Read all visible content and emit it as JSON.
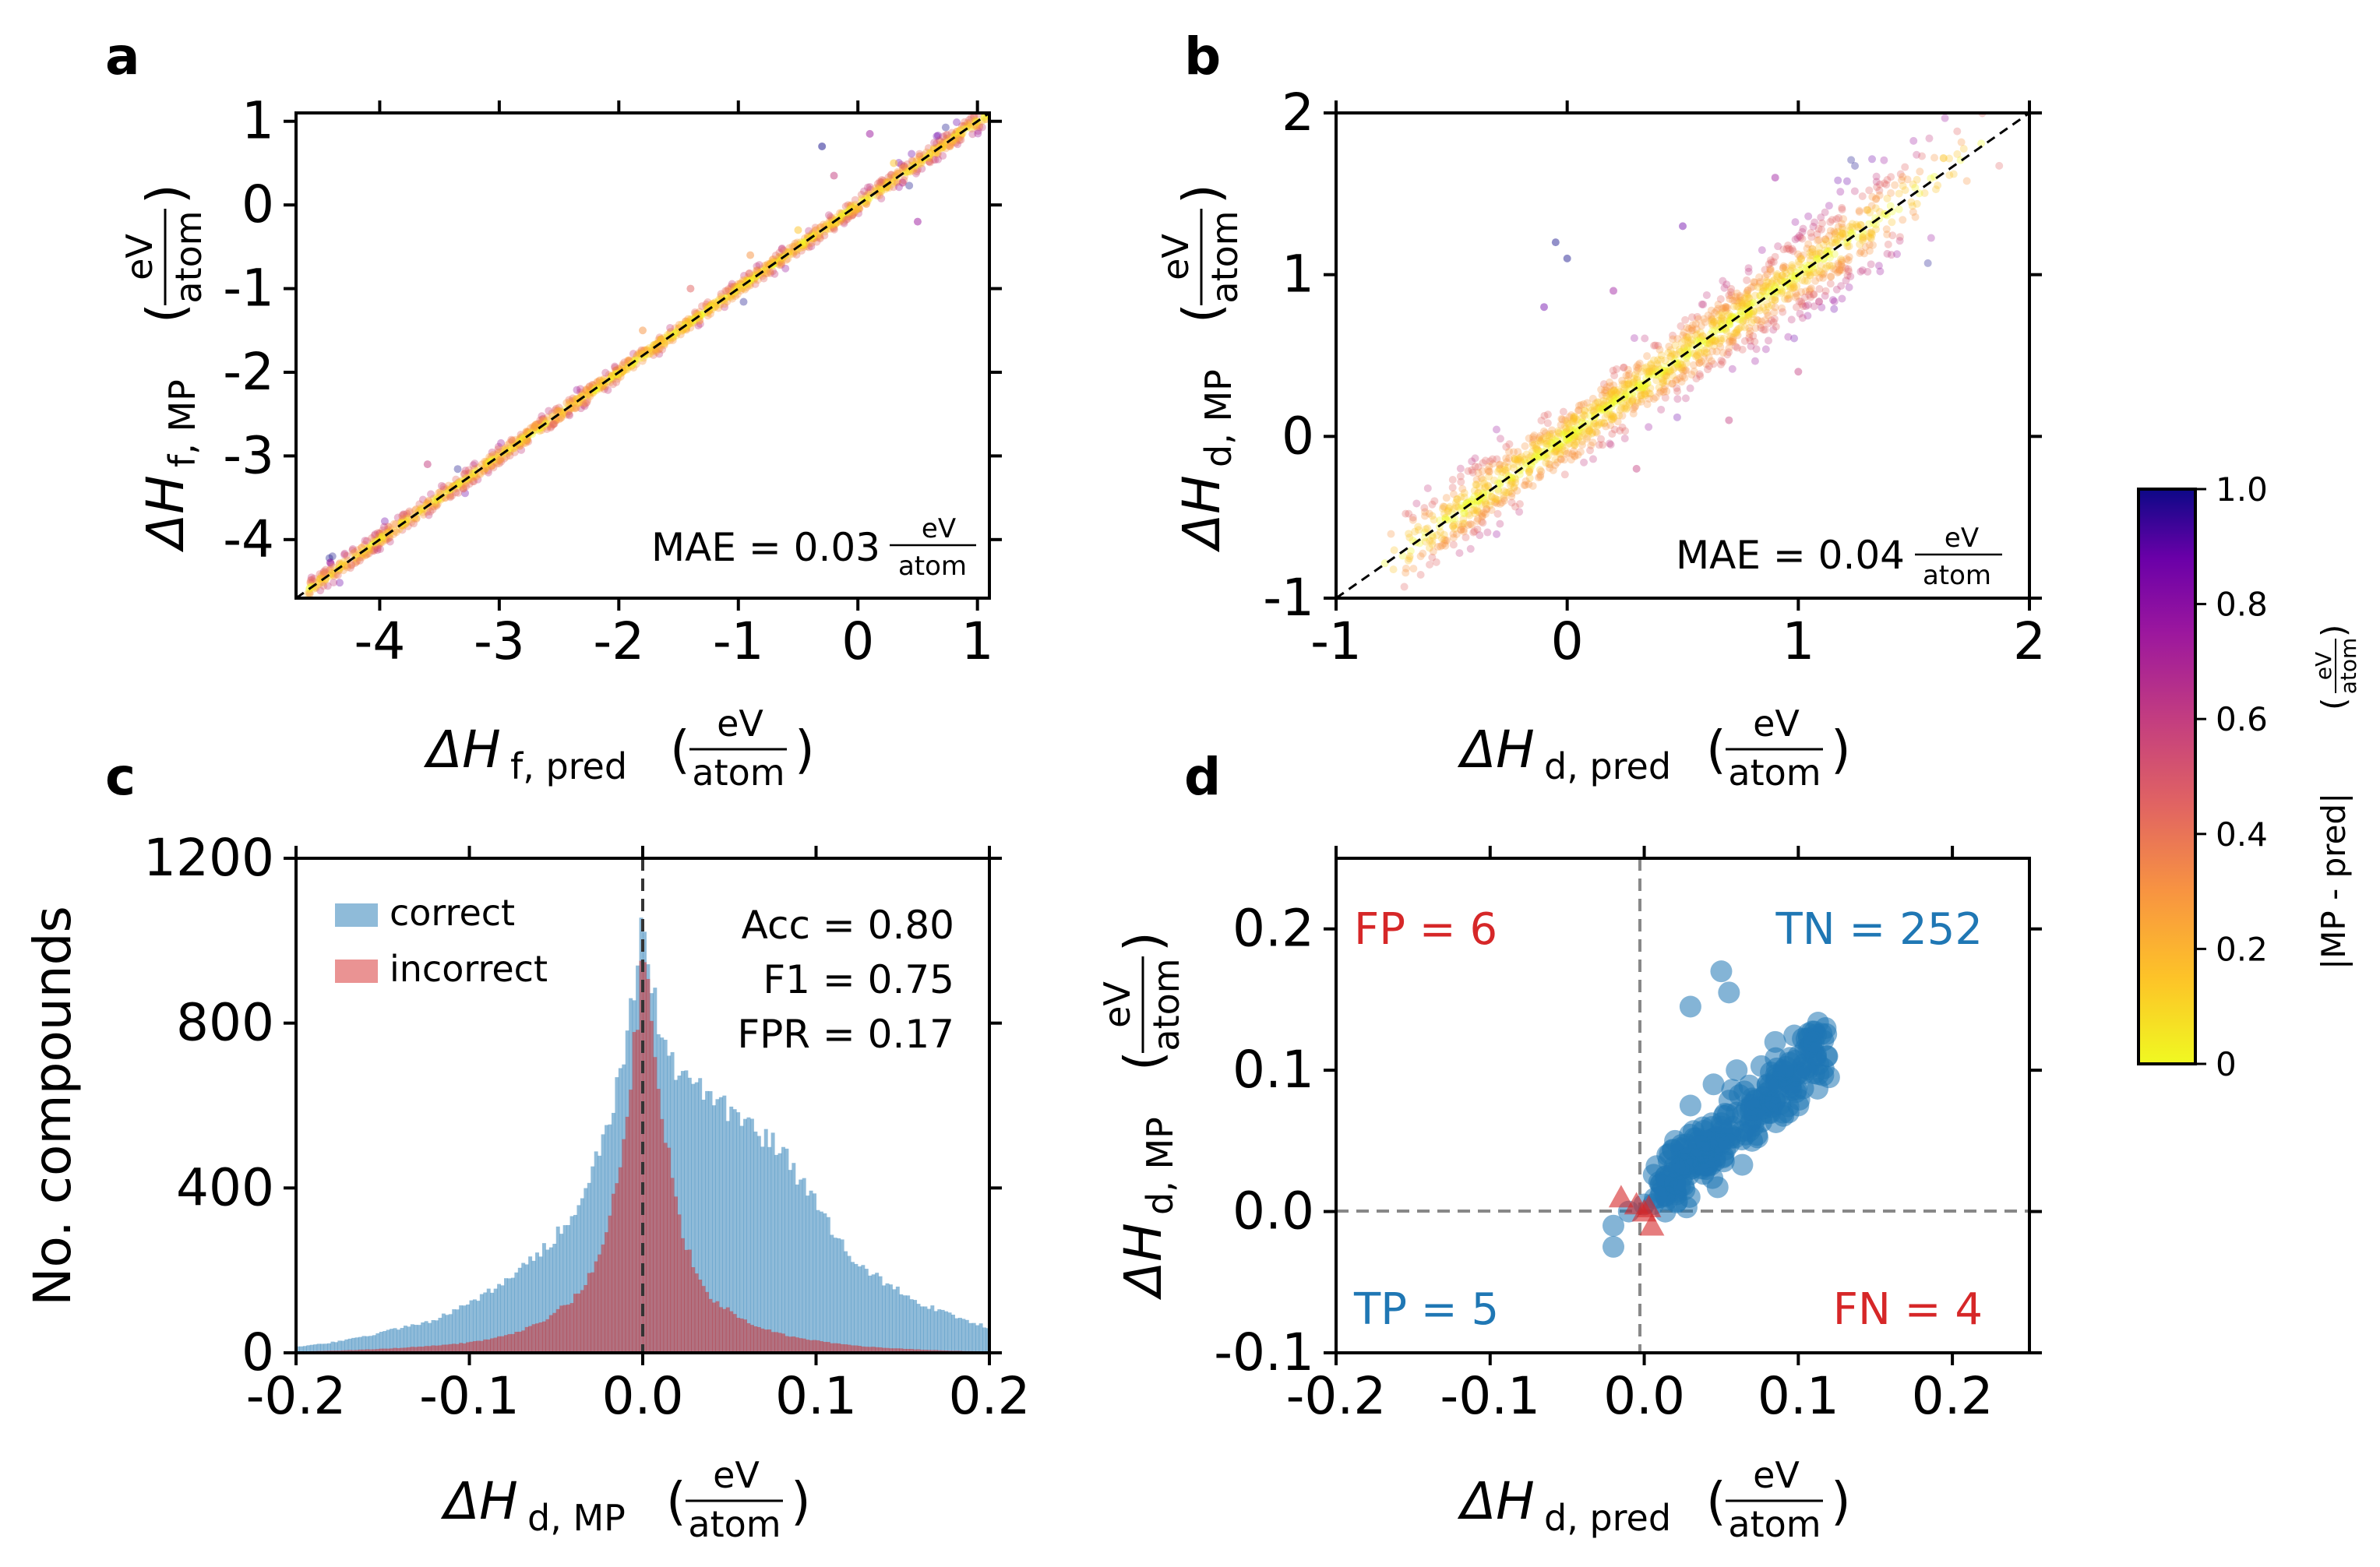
{
  "figure": {
    "colors": {
      "correct": "#1f77b4",
      "incorrect": "#d62728",
      "frame": "#000000",
      "guide": "#888888"
    },
    "colormap": "plasma",
    "colorbar": {
      "label": "|MP - pred|",
      "unit_num": "eV",
      "unit_den": "atom",
      "ticks": [
        "0",
        "0.2",
        "0.4",
        "0.6",
        "0.8",
        "1.0"
      ],
      "range": [
        0,
        1.0
      ]
    }
  },
  "panels": {
    "a": {
      "letter": "a",
      "x_sym": "ΔH",
      "x_sub": "f, pred",
      "y_sym": "ΔH",
      "y_sub": "f, MP",
      "unit_num": "eV",
      "unit_den": "atom",
      "mae_text": "MAE = 0.03",
      "xticks": [
        "-4",
        "-3",
        "-2",
        "-1",
        "0",
        "1"
      ],
      "yticks": [
        "-4",
        "-3",
        "-2",
        "-1",
        "0",
        "1"
      ]
    },
    "b": {
      "letter": "b",
      "x_sym": "ΔH",
      "x_sub": "d, pred",
      "y_sym": "ΔH",
      "y_sub": "d, MP",
      "unit_num": "eV",
      "unit_den": "atom",
      "mae_text": "MAE = 0.04",
      "xticks": [
        "-1",
        "0",
        "1",
        "2"
      ],
      "yticks": [
        "-1",
        "0",
        "1",
        "2"
      ]
    },
    "c": {
      "letter": "c",
      "x_sym": "ΔH",
      "x_sub": "d, MP",
      "ylabel": "No. compounds",
      "unit_num": "eV",
      "unit_den": "atom",
      "xticks": [
        "-0.2",
        "-0.1",
        "0.0",
        "0.1",
        "0.2"
      ],
      "yticks": [
        "0",
        "400",
        "800",
        "1200"
      ],
      "legend": [
        "correct",
        "incorrect"
      ],
      "stats": [
        "Acc = 0.80",
        "F1 = 0.75",
        "FPR = 0.17"
      ]
    },
    "d": {
      "letter": "d",
      "x_sym": "ΔH",
      "x_sub": "d, pred",
      "y_sym": "ΔH",
      "y_sub": "d, MP",
      "unit_num": "eV",
      "unit_den": "atom",
      "xticks": [
        "-0.2",
        "-0.1",
        "0.0",
        "0.1",
        "0.2"
      ],
      "yticks": [
        "-0.1",
        "0.0",
        "0.1",
        "0.2"
      ],
      "quadrants": {
        "fp": "FP = 6",
        "tn": "TN = 252",
        "tp": "TP = 5",
        "fn": "FN = 4"
      }
    }
  },
  "chart_data": [
    {
      "type": "scatter",
      "panel": "a",
      "xlabel": "ΔH f, pred (eV/atom)",
      "ylabel": "ΔH f, MP (eV/atom)",
      "xlim": [
        -4.7,
        1.1
      ],
      "ylim": [
        -4.7,
        1.1
      ],
      "reference_line": "y = x",
      "annotation": "MAE = 0.03 eV/atom",
      "color_by": "|MP - pred|",
      "density_band": [
        [
          -4.6,
          -4.6
        ],
        [
          -3.5,
          -3.5
        ],
        [
          -2.5,
          -2.5
        ],
        [
          -1.5,
          -1.5
        ],
        [
          -0.5,
          -0.5
        ],
        [
          0.5,
          0.5
        ],
        [
          1.0,
          1.0
        ]
      ],
      "outliers": [
        [
          -3.6,
          -3.1
        ],
        [
          -0.3,
          0.7
        ],
        [
          0.1,
          0.85
        ],
        [
          -0.5,
          -0.3
        ],
        [
          0.3,
          0.5
        ],
        [
          -1.4,
          -1.0
        ],
        [
          -0.9,
          -0.6
        ],
        [
          0.5,
          -0.2
        ],
        [
          -0.2,
          0.35
        ],
        [
          -1.8,
          -1.5
        ]
      ]
    },
    {
      "type": "scatter",
      "panel": "b",
      "xlabel": "ΔH d, pred (eV/atom)",
      "ylabel": "ΔH d, MP (eV/atom)",
      "xlim": [
        -1,
        2
      ],
      "ylim": [
        -1,
        2
      ],
      "reference_line": "y = x",
      "annotation": "MAE = 0.04 eV/atom",
      "color_by": "|MP - pred|",
      "density_band": [
        [
          -0.8,
          -0.8
        ],
        [
          -0.3,
          -0.3
        ],
        [
          0.0,
          0.0
        ],
        [
          0.3,
          0.3
        ],
        [
          0.6,
          0.6
        ],
        [
          1.0,
          1.0
        ],
        [
          1.4,
          1.4
        ]
      ],
      "outliers": [
        [
          -0.05,
          1.2
        ],
        [
          0.0,
          1.1
        ],
        [
          -0.1,
          0.8
        ],
        [
          0.2,
          0.9
        ],
        [
          0.7,
          0.1
        ],
        [
          1.0,
          0.4
        ],
        [
          0.5,
          1.3
        ],
        [
          1.3,
          1.4
        ],
        [
          0.3,
          -0.2
        ],
        [
          0.9,
          1.6
        ]
      ]
    },
    {
      "type": "bar",
      "subtype": "histogram",
      "panel": "c",
      "xlabel": "ΔH d, MP (eV/atom)",
      "ylabel": "No. compounds",
      "xlim": [
        -0.2,
        0.2
      ],
      "ylim": [
        0,
        1200
      ],
      "x": [
        -0.2,
        -0.18,
        -0.16,
        -0.14,
        -0.12,
        -0.1,
        -0.08,
        -0.06,
        -0.04,
        -0.03,
        -0.02,
        -0.01,
        0.0,
        0.01,
        0.02,
        0.03,
        0.04,
        0.06,
        0.08,
        0.1,
        0.12,
        0.14,
        0.16,
        0.18,
        0.2
      ],
      "series": [
        {
          "name": "correct",
          "values": [
            15,
            25,
            40,
            60,
            80,
            120,
            170,
            240,
            330,
            420,
            560,
            720,
            1030,
            760,
            690,
            660,
            620,
            560,
            490,
            360,
            230,
            170,
            120,
            90,
            60
          ]
        },
        {
          "name": "incorrect",
          "values": [
            3,
            5,
            8,
            12,
            18,
            25,
            40,
            70,
            130,
            190,
            300,
            520,
            960,
            620,
            330,
            200,
            130,
            75,
            45,
            30,
            18,
            12,
            8,
            5,
            3
          ]
        }
      ],
      "vline": 0.0,
      "legend": [
        "correct",
        "incorrect"
      ],
      "legend_position": "top-left",
      "annotations": [
        "Acc = 0.80",
        "F1 = 0.75",
        "FPR = 0.17"
      ]
    },
    {
      "type": "scatter",
      "panel": "d",
      "xlabel": "ΔH d, pred (eV/atom)",
      "ylabel": "ΔH d, MP (eV/atom)",
      "xlim": [
        -0.2,
        0.25
      ],
      "ylim": [
        -0.1,
        0.25
      ],
      "hline": 0.0,
      "vline": 0.0,
      "series": [
        {
          "name": "correct",
          "marker": "circle",
          "points": [
            [
              -0.02,
              -0.01
            ],
            [
              -0.02,
              -0.025
            ],
            [
              -0.01,
              0.0
            ],
            [
              0.0,
              0.005
            ],
            [
              0.01,
              0.01
            ],
            [
              0.02,
              0.02
            ],
            [
              0.03,
              0.03
            ],
            [
              0.04,
              0.05
            ],
            [
              0.05,
              0.06
            ],
            [
              0.06,
              0.07
            ],
            [
              0.07,
              0.08
            ],
            [
              0.08,
              0.09
            ],
            [
              0.09,
              0.1
            ],
            [
              0.1,
              0.11
            ],
            [
              0.11,
              0.12
            ],
            [
              0.12,
              0.095
            ],
            [
              0.05,
              0.17
            ],
            [
              0.055,
              0.155
            ],
            [
              0.03,
              0.145
            ],
            [
              0.1,
              0.075
            ],
            [
              0.02,
              0.05
            ],
            [
              0.04,
              0.03
            ],
            [
              0.06,
              0.1
            ],
            [
              0.085,
              0.12
            ],
            [
              0.015,
              0.04
            ],
            [
              0.07,
              0.05
            ],
            [
              0.03,
              0.075
            ],
            [
              0.09,
              0.07
            ],
            [
              0.045,
              0.09
            ],
            [
              0.065,
              0.085
            ]
          ]
        },
        {
          "name": "incorrect",
          "marker": "triangle",
          "points": [
            [
              -0.015,
              0.01
            ],
            [
              -0.005,
              0.005
            ],
            [
              0.0,
              0.0
            ],
            [
              0.005,
              -0.01
            ],
            [
              0.003,
              0.003
            ]
          ]
        }
      ],
      "annotations": [
        "FP = 6",
        "TN = 252",
        "TP = 5",
        "FN = 4"
      ]
    }
  ]
}
